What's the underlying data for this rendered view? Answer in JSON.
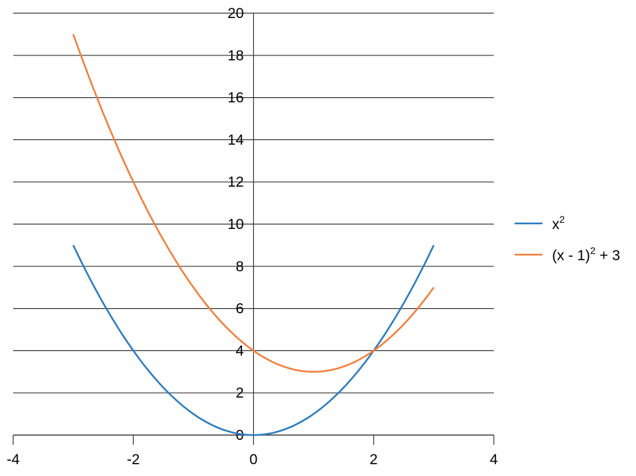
{
  "chart_data": {
    "type": "line",
    "title": "",
    "xlabel": "",
    "ylabel": "",
    "xlim": [
      -4,
      4
    ],
    "ylim": [
      0,
      20
    ],
    "xticks": [
      -4,
      -2,
      0,
      2,
      4
    ],
    "yticks": [
      0,
      2,
      4,
      6,
      8,
      10,
      12,
      14,
      16,
      18,
      20
    ],
    "grid": "horizontal",
    "legend_position": "right",
    "series": [
      {
        "name": "x²",
        "label_base": "x",
        "label_sup": "2",
        "label_rest": "",
        "color": "#2a7bc0",
        "x_range": [
          -3,
          3
        ],
        "formula": "x^2",
        "x": [
          -3,
          -2,
          -1,
          0,
          1,
          2,
          3
        ],
        "values": [
          9,
          4,
          1,
          0,
          1,
          4,
          9
        ]
      },
      {
        "name": "(x - 1)² + 3",
        "label_base": "(x - 1)",
        "label_sup": "2",
        "label_rest": " + 3",
        "color": "#f47d3a",
        "x_range": [
          -3,
          3
        ],
        "formula": "(x-1)^2+3",
        "x": [
          -3,
          -2,
          -1,
          0,
          1,
          2,
          3
        ],
        "values": [
          19,
          12,
          7,
          4,
          3,
          4,
          7
        ]
      }
    ]
  }
}
